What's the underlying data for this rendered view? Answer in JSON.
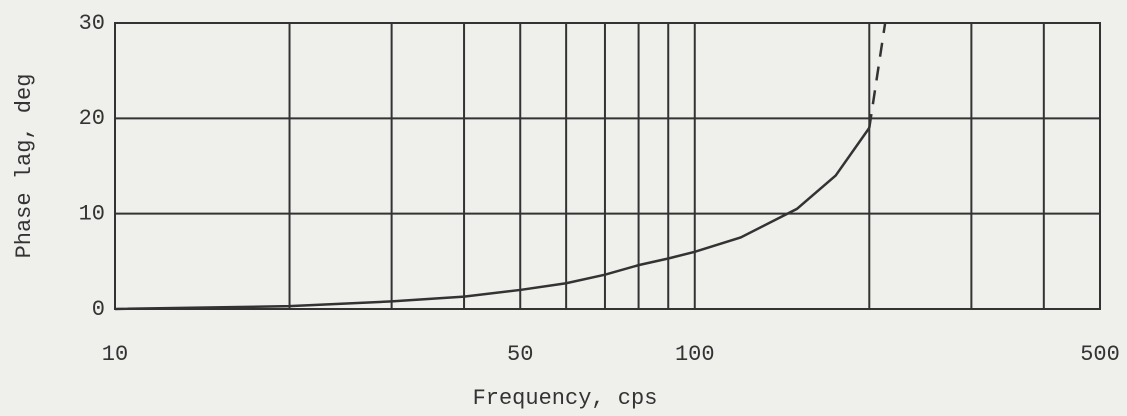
{
  "chart_data": {
    "type": "line",
    "xlabel": "Frequency, cps",
    "ylabel": "Phase lag, deg",
    "x": [
      10,
      20,
      30,
      40,
      50,
      60,
      70,
      80,
      90,
      100,
      120,
      150,
      175,
      200,
      213
    ],
    "series": [
      {
        "color": "#333333",
        "dashed": false,
        "values": [
          0,
          0.3,
          0.8,
          1.3,
          2,
          2.7,
          3.6,
          4.6,
          5.3,
          6,
          7.5,
          10.5,
          14,
          19,
          null
        ]
      },
      {
        "color": "#333333",
        "dashed": true,
        "values": [
          null,
          null,
          null,
          null,
          null,
          null,
          null,
          null,
          null,
          null,
          null,
          null,
          null,
          19,
          30
        ]
      }
    ],
    "xscale": "log",
    "xlim": [
      10,
      500
    ],
    "ylim": [
      0,
      30
    ],
    "xticks": [
      10,
      50,
      100,
      500
    ],
    "xminor": [
      20,
      30,
      40,
      60,
      70,
      80,
      90,
      200,
      300,
      400
    ],
    "yticks": [
      0,
      10,
      20,
      30
    ],
    "grid": true
  }
}
